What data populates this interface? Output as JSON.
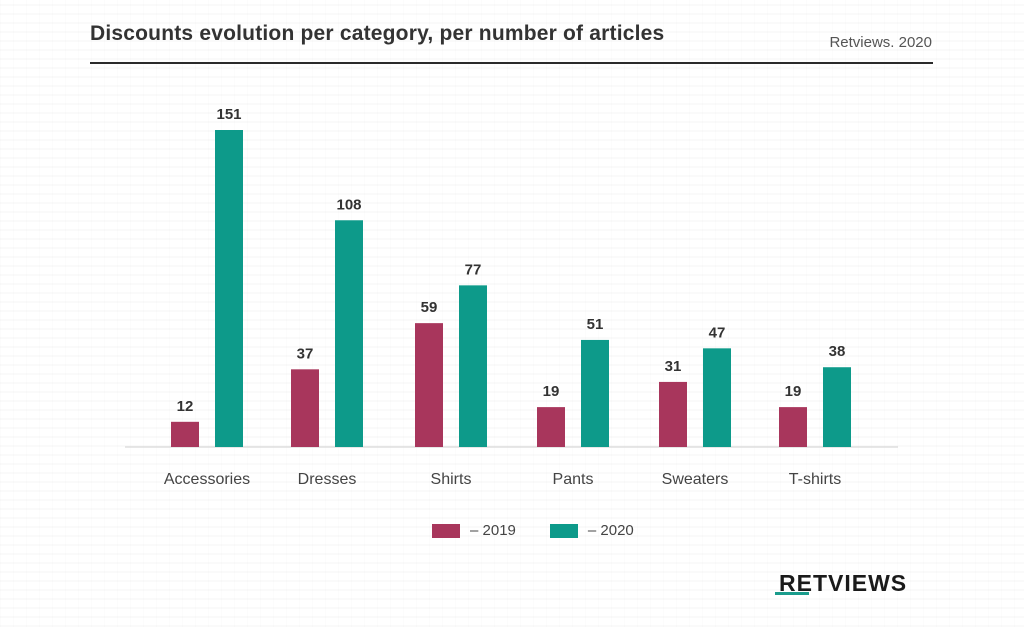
{
  "header": {
    "title": "Discounts evolution per category, per number of articles",
    "source": "Retviews. 2020"
  },
  "brand": {
    "name": "RETVIEWS"
  },
  "colors": {
    "series_2019": "#a8365c",
    "series_2020": "#0d9a8a",
    "axis": "#cfcfcf"
  },
  "chart_data": {
    "type": "bar",
    "title": "Discounts evolution per category, per number of articles",
    "xlabel": "",
    "ylabel": "",
    "ylim": [
      0,
      151
    ],
    "grid": false,
    "legend_position": "bottom",
    "categories": [
      "Accessories",
      "Dresses",
      "Shirts",
      "Pants",
      "Sweaters",
      "T-shirts"
    ],
    "series": [
      {
        "name": "– 2019",
        "values": [
          12,
          37,
          59,
          19,
          31,
          19
        ]
      },
      {
        "name": "– 2020",
        "values": [
          151,
          108,
          77,
          51,
          47,
          38
        ]
      }
    ]
  }
}
